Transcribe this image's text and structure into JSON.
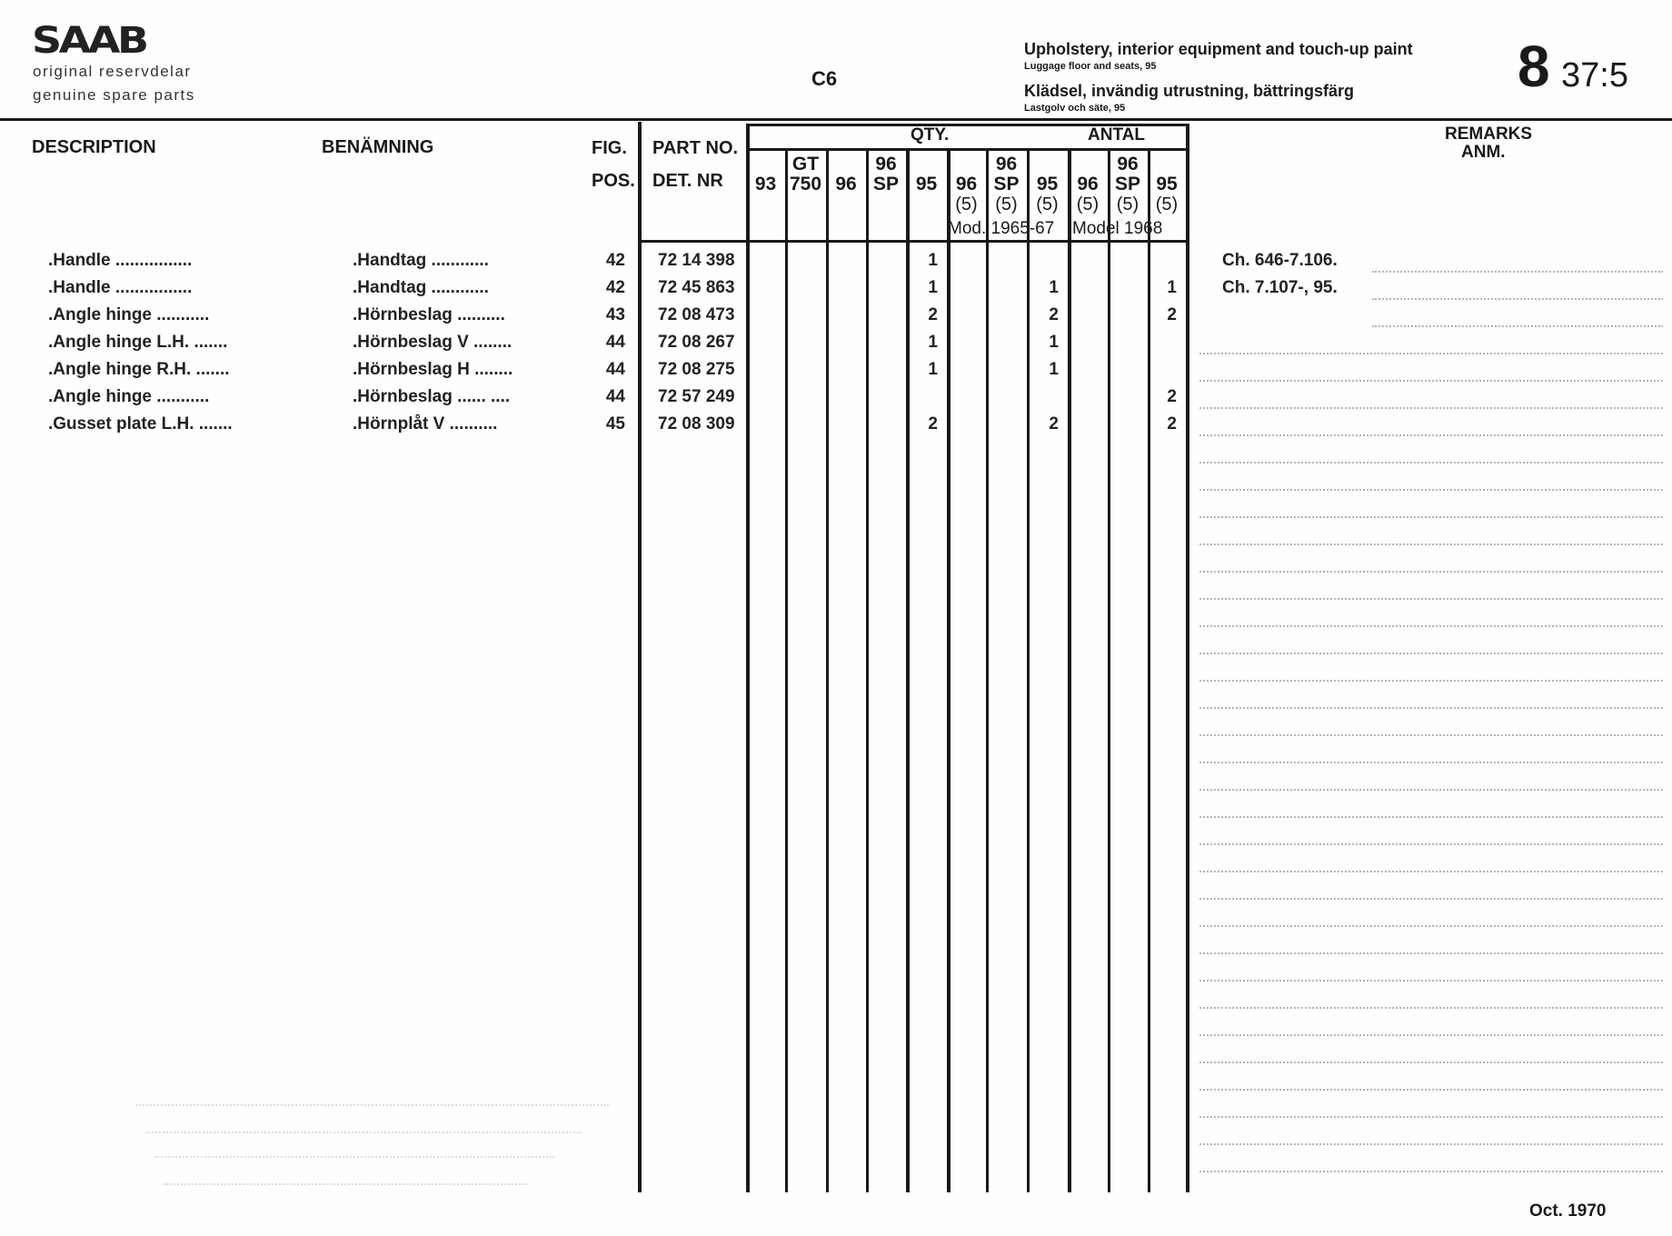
{
  "header": {
    "logo": "SAAB",
    "subtitle_sv": "original reservdelar",
    "subtitle_en": "genuine spare parts",
    "code": "C6",
    "title_en": "Upholstery, interior equipment and touch-up paint",
    "subtitle_title_en": "Luggage floor and seats, 95",
    "title_sv": "Klädsel, invändig utrustning, bättringsfärg",
    "subtitle_title_sv": "Lastgolv och säte, 95",
    "group": "8",
    "page": "37:5"
  },
  "columns": {
    "description": "DESCRIPTION",
    "benamning": "BENÄMNING",
    "fig": "FIG.",
    "pos": "POS.",
    "part_no": "PART NO.",
    "det_nr": "DET. NR",
    "qty": "QTY.",
    "antal": "ANTAL",
    "remarks": "REMARKS",
    "anm": "ANM.",
    "qty_cols": [
      [
        "",
        "93",
        ""
      ],
      [
        "GT",
        "750",
        ""
      ],
      [
        "",
        "96",
        ""
      ],
      [
        "96",
        "SP",
        ""
      ],
      [
        "",
        "95",
        ""
      ],
      [
        "",
        "96",
        "(5)"
      ],
      [
        "96",
        "SP",
        "(5)"
      ],
      [
        "",
        "95",
        "(5)"
      ],
      [
        "",
        "96",
        "(5)"
      ],
      [
        "96",
        "SP",
        "(5)"
      ],
      [
        "",
        "95",
        "(5)"
      ]
    ],
    "mod_6567": "Mod. 1965-67",
    "mod_68": "Model 1968"
  },
  "rows": [
    {
      "description": ".Handle ................",
      "benamning": ".Handtag ............",
      "fig": "42",
      "part": "72 14 398",
      "qty": [
        "",
        "",
        "",
        "",
        "1",
        "",
        "",
        "",
        "",
        "",
        ""
      ],
      "remark": "Ch. 646-7.106."
    },
    {
      "description": ".Handle ................",
      "benamning": ".Handtag ............",
      "fig": "42",
      "part": "72 45 863",
      "qty": [
        "",
        "",
        "",
        "",
        "1",
        "",
        "",
        "1",
        "",
        "",
        "1"
      ],
      "remark": "Ch. 7.107-, 95."
    },
    {
      "description": ".Angle hinge ...........",
      "benamning": ".Hörnbeslag ..........",
      "fig": "43",
      "part": "72 08 473",
      "qty": [
        "",
        "",
        "",
        "",
        "2",
        "",
        "",
        "2",
        "",
        "",
        "2"
      ],
      "remark": ""
    },
    {
      "description": ".Angle hinge L.H. .......",
      "benamning": ".Hörnbeslag V ........",
      "fig": "44",
      "part": "72 08 267",
      "qty": [
        "",
        "",
        "",
        "",
        "1",
        "",
        "",
        "1",
        "",
        "",
        ""
      ],
      "remark": ""
    },
    {
      "description": ".Angle hinge R.H. .......",
      "benamning": ".Hörnbeslag H ........",
      "fig": "44",
      "part": "72 08 275",
      "qty": [
        "",
        "",
        "",
        "",
        "1",
        "",
        "",
        "1",
        "",
        "",
        ""
      ],
      "remark": ""
    },
    {
      "description": ".Angle hinge ...........",
      "benamning": ".Hörnbeslag ...... ....",
      "fig": "44",
      "part": "72 57 249",
      "qty": [
        "",
        "",
        "",
        "",
        "",
        "",
        "",
        "",
        "",
        "",
        "2"
      ],
      "remark": ""
    },
    {
      "description": ".Gusset plate L.H. .......",
      "benamning": ".Hörnplåt V ..........",
      "fig": "45",
      "part": "72 08 309",
      "qty": [
        "",
        "",
        "",
        "",
        "2",
        "",
        "",
        "2",
        "",
        "",
        "2"
      ],
      "remark": ""
    }
  ],
  "footer": {
    "date": "Oct. 1970"
  }
}
